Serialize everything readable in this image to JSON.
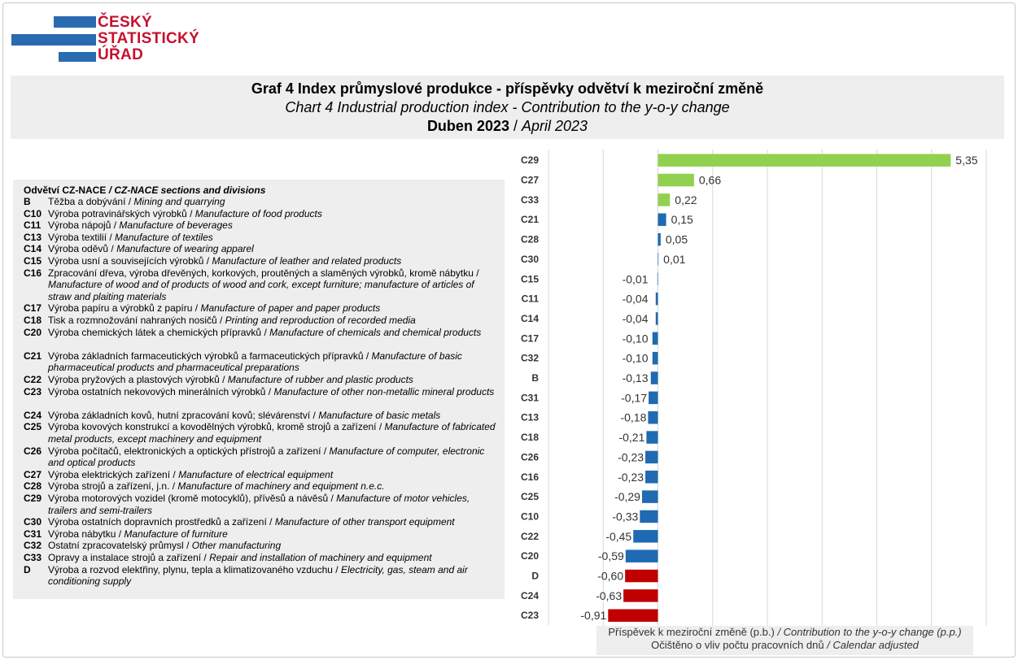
{
  "logo": {
    "line1": "ČESKÝ",
    "line2": "STATISTICKÝ",
    "line3": "ÚŘAD"
  },
  "title": {
    "cz": "Graf 4 Index průmyslové produkce - příspěvky odvětví k meziroční změně",
    "en": "Chart 4 Industrial production index - Contribution to the y-o-y change",
    "period_cz": "Duben 2023",
    "period_sep": " / ",
    "period_en": "April 2023"
  },
  "legend": {
    "heading_cz": "Odvětví CZ-NACE ",
    "heading_en": "/ CZ-NACE sections and divisions",
    "items": [
      {
        "code": "B",
        "cz": "Těžba a dobývání",
        "en": "Mining and quarrying"
      },
      {
        "code": "C10",
        "cz": "Výroba potravinářských výrobků",
        "en": "Manufacture of food products"
      },
      {
        "code": "C11",
        "cz": "Výroba nápojů",
        "en": "Manufacture of beverages"
      },
      {
        "code": "C13",
        "cz": "Výroba textilií",
        "en": "Manufacture of textiles"
      },
      {
        "code": "C14",
        "cz": "Výroba oděvů",
        "en": "Manufacture of wearing apparel"
      },
      {
        "code": "C15",
        "cz": "Výroba usní a souvisejících výrobků",
        "en": "Manufacture of leather and related products"
      },
      {
        "code": "C16",
        "cz": "Zpracování dřeva, výroba dřevěných, korkových, proutěných a slaměných výrobků, kromě nábytku",
        "en": "Manufacture of wood and of products of wood and cork, except furniture; manufacture of articles of straw and plaiting materials"
      },
      {
        "code": "C17",
        "cz": "Výroba papíru a výrobků z papíru",
        "en": "Manufacture of paper and paper products"
      },
      {
        "code": "C18",
        "cz": "Tisk a rozmnožování nahraných nosičů",
        "en": "Printing and reproduction of recorded media"
      },
      {
        "code": "C20",
        "cz": "Výroba chemických látek a chemických přípravků",
        "en": "Manufacture of chemicals and chemical products"
      },
      {
        "code": "C21",
        "cz": "Výroba základních farmaceutických výrobků a farmaceutických přípravků",
        "en": "Manufacture of basic pharmaceutical products and pharmaceutical preparations"
      },
      {
        "code": "C22",
        "cz": "Výroba pryžových a plastových výrobků",
        "en": "Manufacture of rubber and plastic products"
      },
      {
        "code": "C23",
        "cz": "Výroba ostatních nekovových minerálních výrobků",
        "en": "Manufacture of other non-metallic mineral products"
      },
      {
        "code": "C24",
        "cz": "Výroba základních kovů, hutní zpracování kovů; slévárenství",
        "en": "Manufacture of basic metals"
      },
      {
        "code": "C25",
        "cz": "Výroba kovových konstrukcí a kovodělných výrobků, kromě strojů a zařízení",
        "en": "Manufacture of fabricated metal products, except machinery and equipment"
      },
      {
        "code": "C26",
        "cz": "Výroba počítačů, elektronických a optických přístrojů a zařízení",
        "en": "Manufacture of computer, electronic and optical products"
      },
      {
        "code": "C27",
        "cz": "Výroba elektrických zařízení",
        "en": "Manufacture of electrical equipment"
      },
      {
        "code": "C28",
        "cz": "Výroba strojů a zařízení, j.n.",
        "en": "Manufacture of machinery and equipment n.e.c."
      },
      {
        "code": "C29",
        "cz": "Výroba motorových vozidel (kromě motocyklů), přívěsů a návěsů",
        "en": "Manufacture of motor vehicles, trailers and semi-trailers"
      },
      {
        "code": "C30",
        "cz": "Výroba ostatních dopravních prostředků a zařízení",
        "en": "Manufacture of other transport equipment"
      },
      {
        "code": "C31",
        "cz": "Výroba nábytku",
        "en": "Manufacture of furniture"
      },
      {
        "code": "C32",
        "cz": "Ostatní zpracovatelský průmysl",
        "en": "Other manufacturing"
      },
      {
        "code": "C33",
        "cz": "Opravy a instalace strojů a zařízení",
        "en": "Repair and installation of machinery and equipment"
      },
      {
        "code": "D",
        "cz": "Výroba a rozvod elektřiny, plynu, tepla a klimatizovaného vzduchu",
        "en": "Electricity, gas, steam and air conditioning supply"
      }
    ]
  },
  "footer": {
    "line1_cz": "Příspěvek k meziroční změně (p.b.)",
    "line1_en": " / Contribution to the y-o-y change (p.p.)",
    "line2_cz": "Očištěno o vliv počtu pracovních dnů",
    "line2_en": " / Calendar adjusted"
  },
  "colors": {
    "positive_top": "#92d050",
    "other": "#1f6ab3",
    "negative_top": "#c00000",
    "grid": "#d9d9d9"
  },
  "chart_data": {
    "type": "bar",
    "orientation": "horizontal",
    "categories": [
      "C29",
      "C27",
      "C33",
      "C21",
      "C28",
      "C30",
      "C15",
      "C11",
      "C14",
      "C17",
      "C32",
      "B",
      "C31",
      "C13",
      "C18",
      "C26",
      "C16",
      "C25",
      "C10",
      "C22",
      "C20",
      "D",
      "C24",
      "C23"
    ],
    "values": [
      5.35,
      0.66,
      0.22,
      0.15,
      0.05,
      0.01,
      -0.01,
      -0.04,
      -0.04,
      -0.1,
      -0.1,
      -0.13,
      -0.17,
      -0.18,
      -0.21,
      -0.23,
      -0.23,
      -0.29,
      -0.33,
      -0.45,
      -0.59,
      -0.6,
      -0.63,
      -0.91
    ],
    "labels": [
      "5,35",
      "0,66",
      "0,22",
      "0,15",
      "0,05",
      "0,01",
      "-0,01",
      "-0,04",
      "-0,04",
      "-0,10",
      "-0,10",
      "-0,13",
      "-0,17",
      "-0,18",
      "-0,21",
      "-0,23",
      "-0,23",
      "-0,29",
      "-0,33",
      "-0,45",
      "-0,59",
      "-0,60",
      "-0,63",
      "-0,91"
    ],
    "bar_colors": [
      "green",
      "green",
      "green",
      "blue",
      "blue",
      "blue",
      "blue",
      "blue",
      "blue",
      "blue",
      "blue",
      "blue",
      "blue",
      "blue",
      "blue",
      "blue",
      "blue",
      "blue",
      "blue",
      "blue",
      "blue",
      "red",
      "red",
      "red"
    ],
    "xlim": [
      -2,
      6
    ],
    "grid": true,
    "xlabel": "Příspěvek k meziroční změně (p.b.) / Contribution to the y-o-y change (p.p.)"
  }
}
